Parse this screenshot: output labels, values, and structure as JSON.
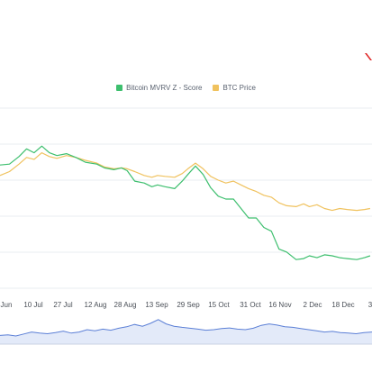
{
  "brand": {
    "accent_color": "#e02a2a",
    "icon": "logo-mark-icon"
  },
  "chart_data": {
    "type": "line",
    "title": "",
    "xlabel": "",
    "ylabel": "",
    "grid": true,
    "legend_position": "top-center",
    "x_ticks": [
      "Jun",
      "10 Jul",
      "27 Jul",
      "12 Aug",
      "28 Aug",
      "13 Sep",
      "29 Sep",
      "15 Oct",
      "31 Oct",
      "16 Nov",
      "2 Dec",
      "18 Dec",
      "3"
    ],
    "series": [
      {
        "name": "Bitcoin MVRV Z - Score",
        "color": "#3dbf6e",
        "x": [
          "2024-06-22",
          "2024-06-27",
          "2024-07-02",
          "2024-07-06",
          "2024-07-10",
          "2024-07-14",
          "2024-07-18",
          "2024-07-22",
          "2024-07-27",
          "2024-08-01",
          "2024-08-06",
          "2024-08-12",
          "2024-08-16",
          "2024-08-21",
          "2024-08-25",
          "2024-08-28",
          "2024-09-01",
          "2024-09-06",
          "2024-09-10",
          "2024-09-13",
          "2024-09-17",
          "2024-09-22",
          "2024-09-26",
          "2024-09-29",
          "2024-10-03",
          "2024-10-07",
          "2024-10-11",
          "2024-10-15",
          "2024-10-19",
          "2024-10-23",
          "2024-10-27",
          "2024-10-31",
          "2024-11-04",
          "2024-11-08",
          "2024-11-12",
          "2024-11-16",
          "2024-11-20",
          "2024-11-25",
          "2024-11-29",
          "2024-12-02",
          "2024-12-06",
          "2024-12-10",
          "2024-12-14",
          "2024-12-18",
          "2024-12-22",
          "2024-12-27",
          "2024-12-31",
          "2025-01-03"
        ],
        "values": [
          1.16,
          1.17,
          1.25,
          1.33,
          1.29,
          1.36,
          1.29,
          1.26,
          1.28,
          1.24,
          1.19,
          1.17,
          1.13,
          1.11,
          1.13,
          1.1,
          0.99,
          0.97,
          0.93,
          0.95,
          0.93,
          0.91,
          0.99,
          1.06,
          1.15,
          1.06,
          0.92,
          0.83,
          0.8,
          0.8,
          0.7,
          0.6,
          0.6,
          0.5,
          0.46,
          0.27,
          0.24,
          0.16,
          0.17,
          0.2,
          0.18,
          0.21,
          0.2,
          0.18,
          0.17,
          0.16,
          0.18,
          0.2
        ]
      },
      {
        "name": "BTC Price",
        "color": "#f0c25e",
        "x": [
          "2024-06-22",
          "2024-06-27",
          "2024-07-02",
          "2024-07-06",
          "2024-07-10",
          "2024-07-14",
          "2024-07-18",
          "2024-07-22",
          "2024-07-27",
          "2024-08-01",
          "2024-08-06",
          "2024-08-12",
          "2024-08-16",
          "2024-08-21",
          "2024-08-25",
          "2024-08-28",
          "2024-09-01",
          "2024-09-06",
          "2024-09-10",
          "2024-09-13",
          "2024-09-17",
          "2024-09-22",
          "2024-09-26",
          "2024-09-29",
          "2024-10-03",
          "2024-10-07",
          "2024-10-11",
          "2024-10-15",
          "2024-10-19",
          "2024-10-23",
          "2024-10-27",
          "2024-10-31",
          "2024-11-04",
          "2024-11-08",
          "2024-11-12",
          "2024-11-16",
          "2024-11-20",
          "2024-11-25",
          "2024-11-29",
          "2024-12-02",
          "2024-12-06",
          "2024-12-10",
          "2024-12-14",
          "2024-12-18",
          "2024-12-22",
          "2024-12-27",
          "2024-12-31",
          "2025-01-03"
        ],
        "values": [
          1.05,
          1.09,
          1.17,
          1.24,
          1.22,
          1.29,
          1.25,
          1.23,
          1.26,
          1.24,
          1.21,
          1.18,
          1.14,
          1.12,
          1.13,
          1.12,
          1.09,
          1.05,
          1.03,
          1.05,
          1.04,
          1.03,
          1.07,
          1.12,
          1.18,
          1.12,
          1.04,
          1.0,
          0.97,
          0.99,
          0.95,
          0.91,
          0.88,
          0.84,
          0.82,
          0.76,
          0.73,
          0.72,
          0.75,
          0.72,
          0.74,
          0.7,
          0.68,
          0.7,
          0.69,
          0.68,
          0.69,
          0.7
        ]
      }
    ],
    "ylim": [
      -0.2,
      1.8
    ],
    "navigator": {
      "color": "#5b7fd6",
      "values": [
        0.3,
        0.32,
        0.28,
        0.35,
        0.42,
        0.38,
        0.36,
        0.4,
        0.45,
        0.38,
        0.42,
        0.5,
        0.46,
        0.52,
        0.48,
        0.55,
        0.6,
        0.68,
        0.62,
        0.72,
        0.85,
        0.7,
        0.62,
        0.58,
        0.55,
        0.52,
        0.48,
        0.5,
        0.54,
        0.56,
        0.52,
        0.5,
        0.55,
        0.65,
        0.7,
        0.66,
        0.6,
        0.58,
        0.54,
        0.5,
        0.46,
        0.42,
        0.44,
        0.4,
        0.38,
        0.36,
        0.4,
        0.42
      ]
    }
  }
}
